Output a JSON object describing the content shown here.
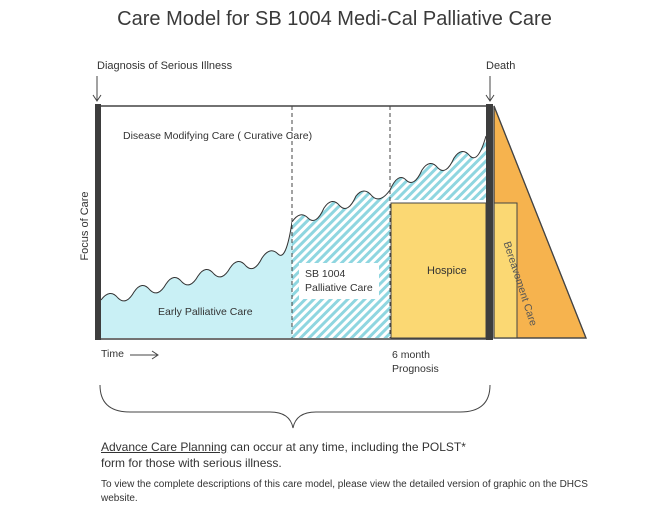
{
  "title": "Care Model for SB 1004 Medi-Cal Palliative Care",
  "labels": {
    "diagnosis": "Diagnosis of Serious Illness",
    "death": "Death",
    "focus_of_care": "Focus of Care",
    "disease_modifying": "Disease Modifying Care ( Curative Care)",
    "early_palliative": "Early Palliative Care",
    "sb1004": "SB 1004\nPalliative Care",
    "hospice": "Hospice",
    "bereavement": "Bereavement Care",
    "time": "Time",
    "six_month": "6 month\nPrognosis"
  },
  "footer": {
    "acp_link": "Advance Care Planning",
    "acp_rest": " can occur at any time, including the POLST*",
    "acp_line2": "form for those with serious illness.",
    "note": "To view the complete descriptions of this care model, please view the detailed version of graphic on the DHCS website."
  },
  "colors": {
    "early_palliative": "#c9f0f5",
    "hatch": "#8fd6e0",
    "hospice": "#fbd873",
    "bereavement": "#f6b34e",
    "bar": "#3d3d3d"
  }
}
